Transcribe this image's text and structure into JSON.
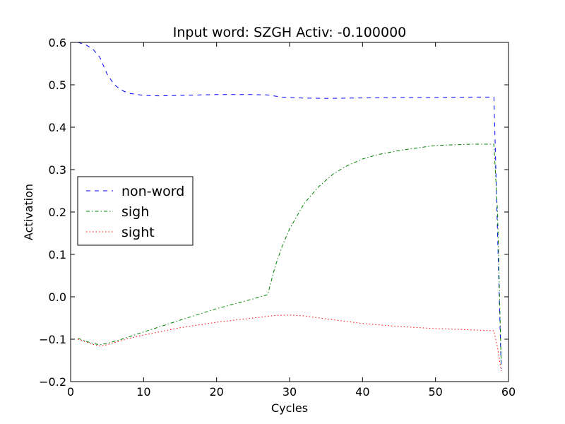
{
  "chart_data": {
    "type": "line",
    "title": "Input word: SZGH Activ: -0.100000",
    "xlabel": "Cycles",
    "ylabel": "Activation",
    "xlim": [
      0,
      60
    ],
    "ylim": [
      -0.2,
      0.6
    ],
    "xticks": [
      0,
      10,
      20,
      30,
      40,
      50,
      60
    ],
    "yticks": [
      -0.2,
      -0.1,
      0.0,
      0.1,
      0.2,
      0.3,
      0.4,
      0.5,
      0.6
    ],
    "xtick_labels": [
      "0",
      "10",
      "20",
      "30",
      "40",
      "50",
      "60"
    ],
    "ytick_labels": [
      "−0.2",
      "−0.1",
      "0.0",
      "0.1",
      "0.2",
      "0.3",
      "0.4",
      "0.5",
      "0.6"
    ],
    "grid": false,
    "legend_position": "center-left",
    "series": [
      {
        "name": "non-word",
        "color": "#0000ff",
        "style": "dashed",
        "x": [
          1,
          2,
          3,
          4,
          5,
          6,
          7,
          8,
          10,
          12,
          15,
          20,
          25,
          27,
          29,
          31,
          35,
          40,
          45,
          50,
          55,
          58,
          58.5,
          59
        ],
        "y": [
          0.6,
          0.595,
          0.585,
          0.565,
          0.525,
          0.5,
          0.487,
          0.48,
          0.475,
          0.474,
          0.475,
          0.477,
          0.477,
          0.476,
          0.471,
          0.469,
          0.468,
          0.469,
          0.47,
          0.47,
          0.471,
          0.471,
          0.15,
          -0.17
        ]
      },
      {
        "name": "sigh",
        "color": "#008000",
        "style": "dashdot",
        "x": [
          1,
          2,
          3,
          4,
          5,
          7,
          10,
          15,
          20,
          25,
          27,
          28,
          29,
          30,
          32,
          34,
          36,
          38,
          40,
          42,
          45,
          50,
          55,
          58,
          58.5,
          59
        ],
        "y": [
          -0.098,
          -0.104,
          -0.11,
          -0.113,
          -0.11,
          -0.1,
          -0.083,
          -0.055,
          -0.028,
          -0.005,
          0.005,
          0.07,
          0.12,
          0.16,
          0.22,
          0.26,
          0.29,
          0.31,
          0.325,
          0.335,
          0.345,
          0.357,
          0.36,
          0.36,
          0.2,
          -0.16
        ]
      },
      {
        "name": "sight",
        "color": "#ff0000",
        "style": "dotted",
        "x": [
          1,
          2,
          3,
          4,
          5,
          6,
          8,
          10,
          15,
          20,
          25,
          28,
          30,
          32,
          35,
          40,
          45,
          50,
          55,
          58,
          58.5,
          59
        ],
        "y": [
          -0.1,
          -0.106,
          -0.112,
          -0.116,
          -0.113,
          -0.108,
          -0.098,
          -0.09,
          -0.073,
          -0.06,
          -0.05,
          -0.044,
          -0.043,
          -0.045,
          -0.052,
          -0.063,
          -0.07,
          -0.075,
          -0.078,
          -0.08,
          -0.12,
          -0.175
        ]
      }
    ]
  }
}
